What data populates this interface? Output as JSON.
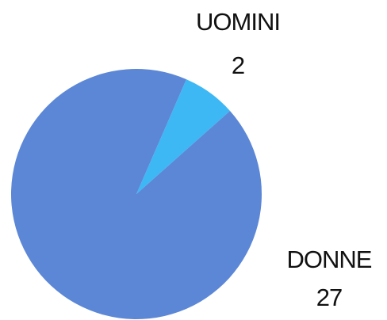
{
  "chart_data": {
    "type": "pie",
    "categories": [
      "UOMINI",
      "DONNE"
    ],
    "values": [
      2,
      27
    ],
    "colors": [
      "#3db8f5",
      "#5b87d6"
    ]
  }
}
